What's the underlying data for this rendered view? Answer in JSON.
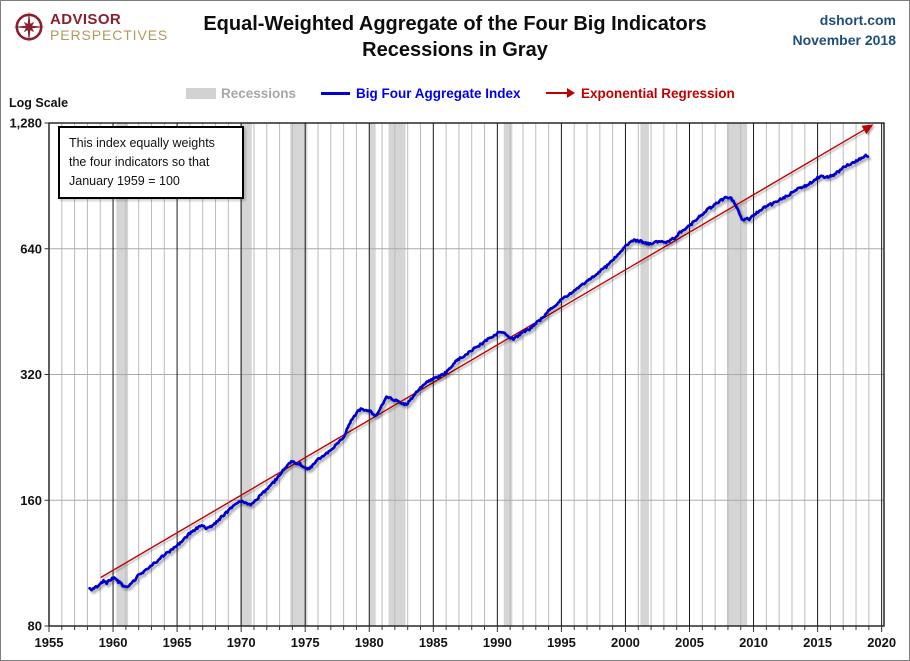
{
  "header": {
    "logo": {
      "word1": "ADVISOR",
      "word2": "PERSPECTIVES",
      "word1_color": "#8a1f2d",
      "word2_color": "#b29a5d",
      "icon_color": "#8a1f2d"
    },
    "title_line1": "Equal-Weighted Aggregate of the Four Big Indicators",
    "title_line2": "Recessions in Gray",
    "source": "dshort.com",
    "date": "November 2018",
    "source_color": "#1f4e79"
  },
  "legend": {
    "items": [
      {
        "label": "Recessions",
        "swatch_color": "#d2d2d2",
        "label_color": "#a7a7a7"
      },
      {
        "label": "Big Four Aggregate Index",
        "swatch_color": "#0000dd",
        "label_color": "#0000ee"
      },
      {
        "label": "Exponential Regression",
        "swatch_color": "#c00000",
        "label_color": "#c00000"
      }
    ]
  },
  "annotation": {
    "lines": [
      "This index equally weights",
      "the four indicators  so that",
      "January 1959  = 100"
    ]
  },
  "chart_data": {
    "type": "line",
    "scale": "log",
    "title": "Equal-Weighted Aggregate of the Four Big Indicators — Recessions in Gray",
    "y_axis_label": "Log Scale",
    "x_range": [
      1955,
      2020
    ],
    "y_range": [
      80,
      1280
    ],
    "y_ticks": [
      {
        "v": 1280,
        "label": "1,280"
      },
      {
        "v": 640,
        "label": "640"
      },
      {
        "v": 320,
        "label": "320"
      },
      {
        "v": 160,
        "label": "160"
      },
      {
        "v": 80,
        "label": "80"
      }
    ],
    "x_major_ticks": [
      1955,
      1960,
      1965,
      1970,
      1975,
      1980,
      1985,
      1990,
      1995,
      2000,
      2005,
      2010,
      2015,
      2020
    ],
    "h_gridlines": [
      160,
      320,
      640
    ],
    "recession_color": "#d5d5d5",
    "grid": {
      "minor_color": "#bcbcbc",
      "major_color": "#1a1a1a",
      "h_color": "#ababab",
      "border_color": "#1a1a1a"
    },
    "recessions": [
      [
        1960.25,
        1961.17
      ],
      [
        1969.92,
        1970.83
      ],
      [
        1973.83,
        1975.17
      ],
      [
        1980.0,
        1980.5
      ],
      [
        1981.5,
        1982.83
      ],
      [
        1990.5,
        1991.17
      ],
      [
        2001.17,
        2001.83
      ],
      [
        2007.92,
        2009.5
      ]
    ],
    "series": [
      {
        "name": "Big Four Aggregate Index",
        "color": "#0202cc",
        "points": [
          [
            1958.17,
            98.5
          ],
          [
            1958.33,
            97.4
          ],
          [
            1958.5,
            98.2
          ],
          [
            1958.75,
            99.6
          ],
          [
            1959.0,
            100.6
          ],
          [
            1959.25,
            102.4
          ],
          [
            1959.5,
            101.4
          ],
          [
            1959.75,
            103.2
          ],
          [
            1960.1,
            104.2
          ],
          [
            1960.4,
            102.2
          ],
          [
            1960.7,
            100.4
          ],
          [
            1961.0,
            98.9
          ],
          [
            1961.25,
            99.6
          ],
          [
            1961.6,
            102.4
          ],
          [
            1962.0,
            105.8
          ],
          [
            1962.5,
            108.6
          ],
          [
            1963.0,
            111.8
          ],
          [
            1963.5,
            114.6
          ],
          [
            1964.0,
            118.4
          ],
          [
            1964.5,
            121.2
          ],
          [
            1965.0,
            124.6
          ],
          [
            1965.5,
            128.6
          ],
          [
            1966.0,
            133.4
          ],
          [
            1966.5,
            137.2
          ],
          [
            1966.9,
            139.4
          ],
          [
            1967.3,
            137.2
          ],
          [
            1967.7,
            138.6
          ],
          [
            1968.0,
            141.2
          ],
          [
            1968.5,
            146.2
          ],
          [
            1969.0,
            151.2
          ],
          [
            1969.5,
            155.8
          ],
          [
            1969.95,
            159.6
          ],
          [
            1970.3,
            157.4
          ],
          [
            1970.7,
            155.8
          ],
          [
            1970.95,
            157.2
          ],
          [
            1971.3,
            162
          ],
          [
            1971.7,
            166.5
          ],
          [
            1972.0,
            170.5
          ],
          [
            1972.5,
            176
          ],
          [
            1973.0,
            184
          ],
          [
            1973.5,
            192.5
          ],
          [
            1973.92,
            198
          ],
          [
            1974.25,
            196.5
          ],
          [
            1974.6,
            195.5
          ],
          [
            1975.0,
            191.5
          ],
          [
            1975.3,
            190
          ],
          [
            1975.7,
            196
          ],
          [
            1976.0,
            200.5
          ],
          [
            1976.5,
            205.5
          ],
          [
            1977.0,
            211
          ],
          [
            1977.5,
            218
          ],
          [
            1978.0,
            227
          ],
          [
            1978.5,
            245
          ],
          [
            1979.0,
            259
          ],
          [
            1979.4,
            265
          ],
          [
            1979.8,
            263
          ],
          [
            1980.1,
            261
          ],
          [
            1980.45,
            255.5
          ],
          [
            1980.75,
            260
          ],
          [
            1981.05,
            272
          ],
          [
            1981.35,
            283
          ],
          [
            1981.7,
            280.5
          ],
          [
            1982.1,
            277
          ],
          [
            1982.5,
            274
          ],
          [
            1982.9,
            271
          ],
          [
            1983.3,
            280
          ],
          [
            1983.8,
            293
          ],
          [
            1984.3,
            304
          ],
          [
            1984.8,
            311
          ],
          [
            1985.2,
            315
          ],
          [
            1985.7,
            319
          ],
          [
            1986.2,
            328
          ],
          [
            1986.9,
            348
          ],
          [
            1987.4,
            354
          ],
          [
            1988.0,
            366
          ],
          [
            1988.5,
            374
          ],
          [
            1989.0,
            383
          ],
          [
            1989.5,
            393
          ],
          [
            1990.0,
            401
          ],
          [
            1990.4,
            405
          ],
          [
            1990.8,
            397
          ],
          [
            1991.2,
            389
          ],
          [
            1991.6,
            396
          ],
          [
            1992.0,
            404
          ],
          [
            1992.5,
            411
          ],
          [
            1993.0,
            424
          ],
          [
            1993.5,
            437
          ],
          [
            1994.0,
            454
          ],
          [
            1994.5,
            468
          ],
          [
            1995.0,
            484
          ],
          [
            1995.5,
            495
          ],
          [
            1996.0,
            508
          ],
          [
            1996.5,
            521
          ],
          [
            1997.0,
            536
          ],
          [
            1997.5,
            549
          ],
          [
            1998.0,
            565
          ],
          [
            1998.5,
            580
          ],
          [
            1999.0,
            601
          ],
          [
            1999.5,
            622
          ],
          [
            2000.0,
            648
          ],
          [
            2000.5,
            668
          ],
          [
            2000.9,
            671
          ],
          [
            2001.3,
            665
          ],
          [
            2001.7,
            659
          ],
          [
            2002.0,
            655
          ],
          [
            2002.35,
            663
          ],
          [
            2002.7,
            668
          ],
          [
            2003.0,
            661
          ],
          [
            2003.4,
            668
          ],
          [
            2003.8,
            678
          ],
          [
            2004.2,
            698
          ],
          [
            2004.7,
            715
          ],
          [
            2005.2,
            736
          ],
          [
            2005.7,
            760
          ],
          [
            2006.2,
            785
          ],
          [
            2006.7,
            805
          ],
          [
            2007.2,
            826
          ],
          [
            2007.6,
            840
          ],
          [
            2007.95,
            850
          ],
          [
            2008.25,
            844
          ],
          [
            2008.55,
            822
          ],
          [
            2008.85,
            786
          ],
          [
            2009.05,
            757
          ],
          [
            2009.2,
            747
          ],
          [
            2009.45,
            761
          ],
          [
            2009.65,
            754
          ],
          [
            2009.95,
            768
          ],
          [
            2010.3,
            782
          ],
          [
            2010.7,
            799
          ],
          [
            2011.0,
            812
          ],
          [
            2011.4,
            818
          ],
          [
            2011.8,
            828
          ],
          [
            2012.2,
            843
          ],
          [
            2012.6,
            855
          ],
          [
            2013.0,
            872
          ],
          [
            2013.4,
            890
          ],
          [
            2013.8,
            897
          ],
          [
            2014.2,
            910
          ],
          [
            2014.6,
            925
          ],
          [
            2015.0,
            946
          ],
          [
            2015.4,
            953
          ],
          [
            2015.8,
            951
          ],
          [
            2016.2,
            960
          ],
          [
            2016.6,
            978
          ],
          [
            2017.0,
            1000
          ],
          [
            2017.4,
            1016
          ],
          [
            2017.8,
            1030
          ],
          [
            2018.2,
            1046
          ],
          [
            2018.5,
            1060
          ],
          [
            2018.75,
            1068
          ],
          [
            2018.92,
            1064
          ]
        ]
      },
      {
        "name": "Exponential Regression",
        "color": "#c00000",
        "points": [
          [
            1959.04,
            104.5
          ],
          [
            2018.62,
            1232
          ]
        ]
      }
    ]
  }
}
